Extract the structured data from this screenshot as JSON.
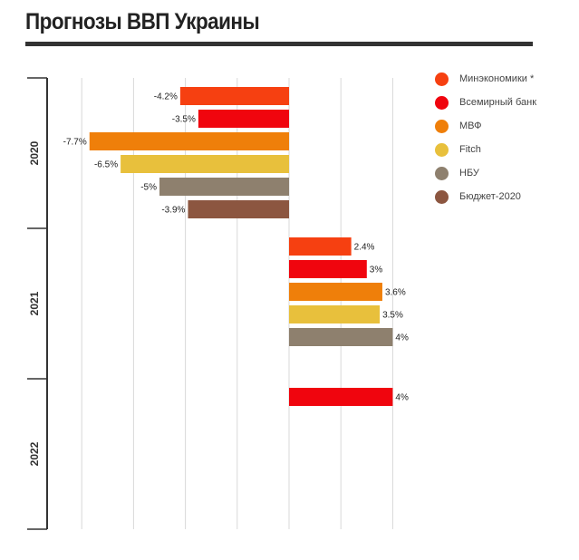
{
  "title": "Прогнозы ВВП Украины",
  "legend": {
    "items": [
      {
        "label": "Минэкономики *",
        "color": "#f64011"
      },
      {
        "label": "Всемирный банк",
        "color": "#f0050e"
      },
      {
        "label": "МВФ",
        "color": "#ef7f0a"
      },
      {
        "label": "Fitch",
        "color": "#e8c03c"
      },
      {
        "label": "НБУ",
        "color": "#8e806e"
      },
      {
        "label": "Бюджет-2020",
        "color": "#8c5640"
      }
    ]
  },
  "chart_data": {
    "type": "bar",
    "orientation": "horizontal",
    "title": "Прогнозы ВВП Украины",
    "categories": [
      "2020",
      "2021",
      "2022"
    ],
    "xlim": [
      -9.5,
      4
    ],
    "grid": true,
    "legend_position": "top-right",
    "series": [
      {
        "name": "Минэкономики *",
        "color": "#f64011",
        "values": [
          -4.2,
          2.4,
          null
        ],
        "labels": [
          "-4.2%",
          "2.4%",
          ""
        ]
      },
      {
        "name": "Всемирный банк",
        "color": "#f0050e",
        "values": [
          -3.5,
          3,
          4
        ],
        "labels": [
          "-3.5%",
          "3%",
          "4%"
        ]
      },
      {
        "name": "МВФ",
        "color": "#ef7f0a",
        "values": [
          -7.7,
          3.6,
          null
        ],
        "labels": [
          "-7.7%",
          "3.6%",
          ""
        ]
      },
      {
        "name": "Fitch",
        "color": "#e8c03c",
        "values": [
          -6.5,
          3.5,
          null
        ],
        "labels": [
          "-6.5%",
          "3.5%",
          ""
        ]
      },
      {
        "name": "НБУ",
        "color": "#8e806e",
        "values": [
          -5,
          4,
          null
        ],
        "labels": [
          "-5%",
          "4%",
          ""
        ]
      },
      {
        "name": "Бюджет-2020",
        "color": "#8c5640",
        "values": [
          -3.9,
          null,
          null
        ],
        "labels": [
          "-3.9%",
          "",
          ""
        ]
      }
    ]
  }
}
